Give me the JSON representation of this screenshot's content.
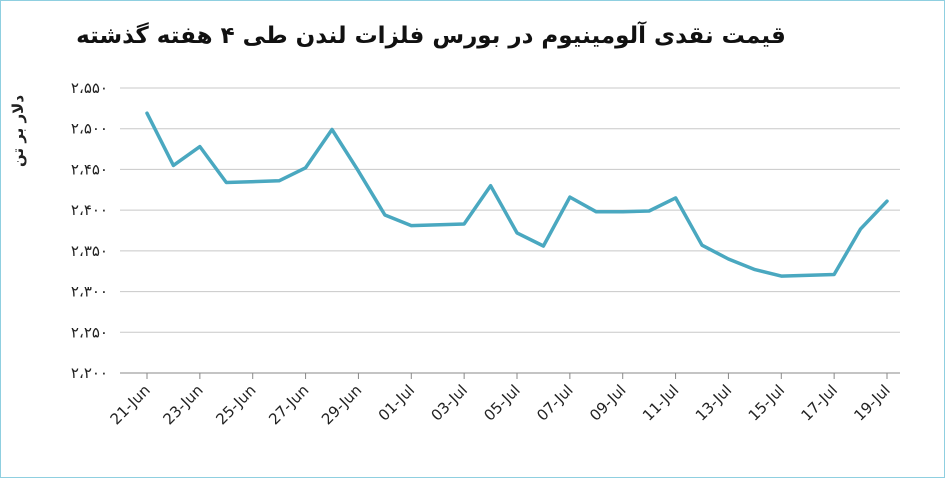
{
  "chart_data": {
    "type": "line",
    "title": "قیمت نقدی آلومینیوم در بورس فلزات لندن طی ۴ هفته گذشته",
    "ylabel": "دلار بر تن",
    "xlabel": "",
    "ylim": [
      2200,
      2550
    ],
    "yticks": [
      2200,
      2250,
      2300,
      2350,
      2400,
      2450,
      2500,
      2550
    ],
    "ytick_labels": [
      "۲،۲۰۰",
      "۲،۲۵۰",
      "۲،۳۰۰",
      "۲،۳۵۰",
      "۲،۴۰۰",
      "۲،۴۵۰",
      "۲،۵۰۰",
      "۲،۵۵۰"
    ],
    "xtick_labels": [
      "21-Jun",
      "23-Jun",
      "25-Jun",
      "27-Jun",
      "29-Jun",
      "01-Jul",
      "03-Jul",
      "05-Jul",
      "07-Jul",
      "09-Jul",
      "11-Jul",
      "13-Jul",
      "15-Jul",
      "17-Jul",
      "19-Jul"
    ],
    "grid": true,
    "line_color": "#4aa8c0",
    "series": [
      {
        "points": [
          {
            "x": "2019-06-21",
            "y": 2519
          },
          {
            "x": "2019-06-22",
            "y": 2455
          },
          {
            "x": "2019-06-23",
            "y": 2478
          },
          {
            "x": "2019-06-24",
            "y": 2434
          },
          {
            "x": "2019-06-26",
            "y": 2436
          },
          {
            "x": "2019-06-27",
            "y": 2452
          },
          {
            "x": "2019-06-28",
            "y": 2499
          },
          {
            "x": "2019-06-29",
            "y": 2448
          },
          {
            "x": "2019-06-30",
            "y": 2394
          },
          {
            "x": "2019-07-01",
            "y": 2381
          },
          {
            "x": "2019-07-03",
            "y": 2383
          },
          {
            "x": "2019-07-04",
            "y": 2430
          },
          {
            "x": "2019-07-05",
            "y": 2372
          },
          {
            "x": "2019-07-06",
            "y": 2356
          },
          {
            "x": "2019-07-07",
            "y": 2416
          },
          {
            "x": "2019-07-08",
            "y": 2398
          },
          {
            "x": "2019-07-09",
            "y": 2398
          },
          {
            "x": "2019-07-10",
            "y": 2399
          },
          {
            "x": "2019-07-11",
            "y": 2415
          },
          {
            "x": "2019-07-12",
            "y": 2357
          },
          {
            "x": "2019-07-13",
            "y": 2340
          },
          {
            "x": "2019-07-14",
            "y": 2327
          },
          {
            "x": "2019-07-15",
            "y": 2319
          },
          {
            "x": "2019-07-17",
            "y": 2321
          },
          {
            "x": "2019-07-18",
            "y": 2377
          },
          {
            "x": "2019-07-19",
            "y": 2411
          }
        ]
      }
    ]
  }
}
